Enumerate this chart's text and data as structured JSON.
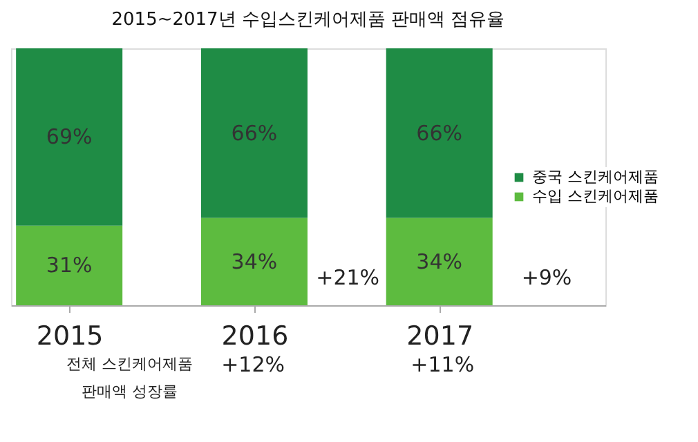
{
  "chart_data": {
    "type": "bar",
    "title": "2015~2017년 수입스킨케어제품 판매액 점유율",
    "categories": [
      "2015",
      "2016",
      "2017"
    ],
    "stacked": true,
    "data_labels": true,
    "legend": "right",
    "grid": false,
    "series": [
      {
        "name": "수입 스킨케어제품",
        "color": "#5dbb3f",
        "values": [
          31,
          34,
          34
        ],
        "value_labels": [
          "31%",
          "34%",
          "34%"
        ]
      },
      {
        "name": "중국 스킨케어제품",
        "color": "#1f8c45",
        "values": [
          69,
          66,
          66
        ],
        "value_labels": [
          "69%",
          "66%",
          "66%"
        ]
      }
    ],
    "annotations": [
      "+21%",
      "+9%",
      "+12%",
      "+11%",
      "전체 스킨케어제품\n판매액 성장률"
    ]
  }
}
